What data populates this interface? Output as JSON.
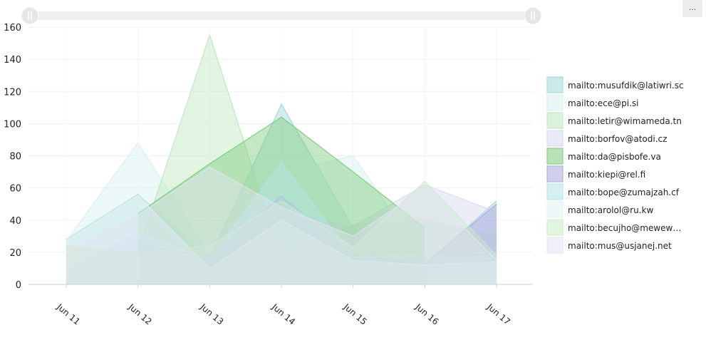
{
  "menu_button_label": "...",
  "chart_data": {
    "type": "area",
    "title": "",
    "xlabel": "",
    "ylabel": "",
    "categories": [
      "Jun 11",
      "Jun 12",
      "Jun 13",
      "Jun 14",
      "Jun 15",
      "Jun 16",
      "Jun 17"
    ],
    "ylim": [
      0,
      160
    ],
    "yticks": [
      0,
      20,
      40,
      60,
      80,
      100,
      120,
      140,
      160
    ],
    "grid": true,
    "legend_position": "right",
    "has_range_slider": true,
    "series": [
      {
        "name": "mailto:musufdik@latiwri.sc",
        "color": "#9fd8d8",
        "values": [
          28,
          56,
          16,
          112,
          35,
          12,
          52
        ]
      },
      {
        "name": "mailto:ece@pi.si",
        "color": "#d7efef",
        "values": [
          27,
          88,
          18,
          70,
          80,
          15,
          18
        ]
      },
      {
        "name": "mailto:letir@wimameda.tn",
        "color": "#bfe6bf",
        "values": [
          22,
          21,
          155,
          16,
          37,
          40,
          30
        ]
      },
      {
        "name": "mailto:borfov@atodi.cz",
        "color": "#d8d8f0",
        "values": [
          null,
          18,
          16,
          44,
          36,
          62,
          45
        ]
      },
      {
        "name": "mailto:da@pisbofe.va",
        "color": "#7ccb7c",
        "values": [
          null,
          44,
          75,
          104,
          70,
          35,
          null
        ]
      },
      {
        "name": "mailto:kiepi@rel.fi",
        "color": "#a9a9dc",
        "values": [
          null,
          25,
          17,
          55,
          18,
          13,
          50
        ]
      },
      {
        "name": "mailto:bope@zumajzah.cf",
        "color": "#b3e4e4",
        "values": [
          8,
          32,
          16,
          76,
          17,
          18,
          20
        ]
      },
      {
        "name": "mailto:arolol@ru.kw",
        "color": "#e1f2f2",
        "values": [
          27,
          55,
          10,
          40,
          15,
          12,
          14
        ]
      },
      {
        "name": "mailto:becujho@mewew…",
        "color": "#c9ecc9",
        "values": [
          24,
          20,
          24,
          52,
          23,
          64,
          18
        ]
      },
      {
        "name": "mailto:mus@usjanej.net",
        "color": "#e3e3f4",
        "values": [
          22,
          43,
          73,
          48,
          30,
          60,
          15
        ]
      }
    ]
  }
}
